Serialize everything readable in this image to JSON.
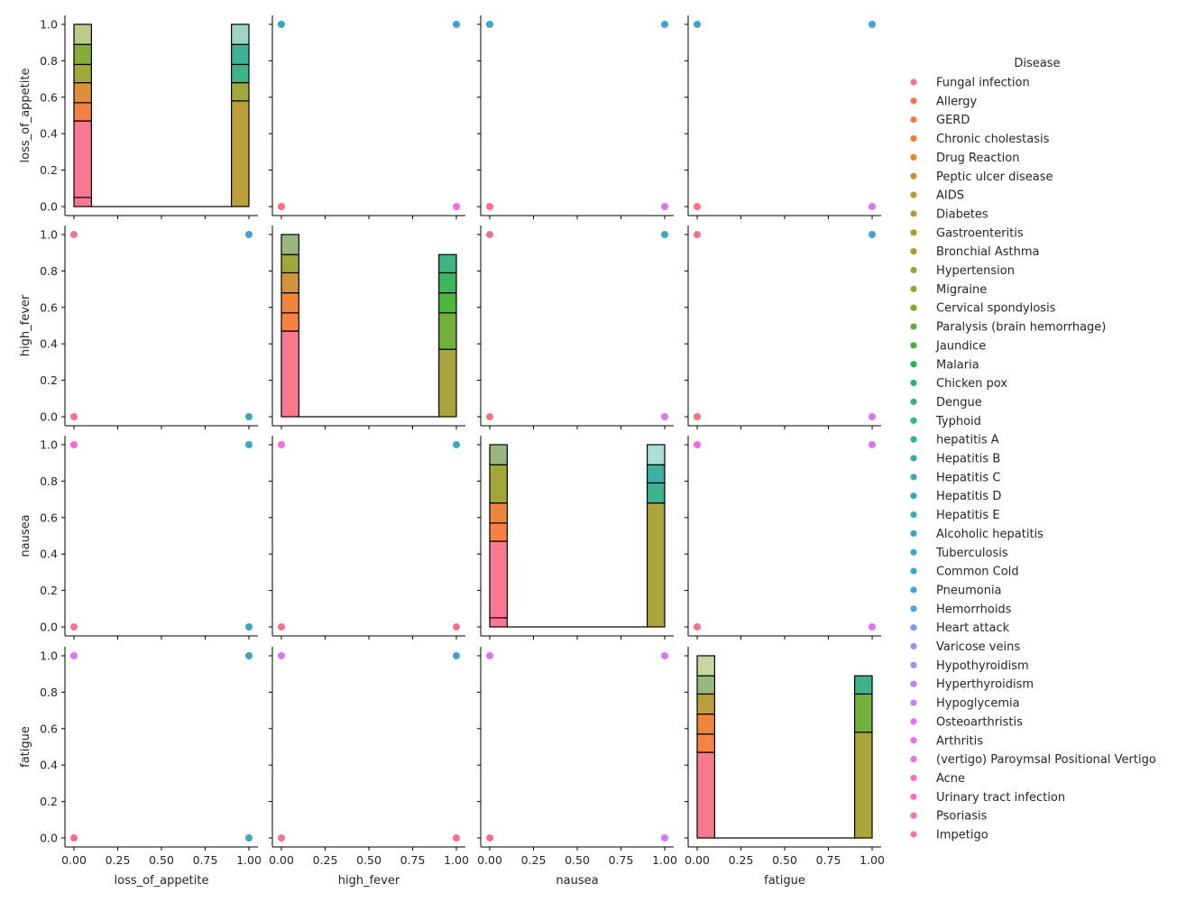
{
  "chart_data": {
    "type": "pairplot",
    "variables": [
      "loss_of_appetite",
      "high_fever",
      "nausea",
      "fatigue"
    ],
    "axis_range": [
      0,
      1
    ],
    "ticks": [
      {
        "value": 0,
        "label": "0.00",
        "ylabel": "0.0"
      },
      {
        "value": 0.2,
        "label": "",
        "ylabel": "0.2"
      },
      {
        "value": 0.25,
        "label": "0.25",
        "ylabel": ""
      },
      {
        "value": 0.4,
        "label": "",
        "ylabel": "0.4"
      },
      {
        "value": 0.5,
        "label": "0.50",
        "ylabel": ""
      },
      {
        "value": 0.6,
        "label": "",
        "ylabel": "0.6"
      },
      {
        "value": 0.75,
        "label": "0.75",
        "ylabel": ""
      },
      {
        "value": 0.8,
        "label": "",
        "ylabel": "0.8"
      },
      {
        "value": 1.0,
        "label": "1.00",
        "ylabel": "1.0"
      }
    ],
    "legend": {
      "title": "Disease",
      "placement": "right",
      "entries": [
        {
          "name": "Fungal infection",
          "color": "#f77189"
        },
        {
          "name": "Allergy",
          "color": "#f7754f"
        },
        {
          "name": "GERD",
          "color": "#f67a3a"
        },
        {
          "name": "Chronic cholestasis",
          "color": "#ec7f31"
        },
        {
          "name": "Drug Reaction",
          "color": "#dc8932"
        },
        {
          "name": "Peptic ulcer disease",
          "color": "#ce8f31"
        },
        {
          "name": "AIDS",
          "color": "#c39532"
        },
        {
          "name": "Diabetes",
          "color": "#b89a31"
        },
        {
          "name": "Gastroenteritis",
          "color": "#ae9d31"
        },
        {
          "name": "Bronchial Asthma",
          "color": "#a5a031"
        },
        {
          "name": "Hypertension",
          "color": "#9ba331"
        },
        {
          "name": "Migraine",
          "color": "#8fa631"
        },
        {
          "name": "Cervical spondylosis",
          "color": "#80a931"
        },
        {
          "name": "Paralysis (brain hemorrhage)",
          "color": "#6aad32"
        },
        {
          "name": "Jaundice",
          "color": "#43b332"
        },
        {
          "name": "Malaria",
          "color": "#33b255"
        },
        {
          "name": "Chicken pox",
          "color": "#34b16f"
        },
        {
          "name": "Dengue",
          "color": "#35af7f"
        },
        {
          "name": "Typhoid",
          "color": "#35ae8a"
        },
        {
          "name": "hepatitis A",
          "color": "#36ad94"
        },
        {
          "name": "Hepatitis B",
          "color": "#36ac9d"
        },
        {
          "name": "Hepatitis C",
          "color": "#37aba5"
        },
        {
          "name": "Hepatitis D",
          "color": "#38aaad"
        },
        {
          "name": "Hepatitis E",
          "color": "#38a9b5"
        },
        {
          "name": "Alcoholic hepatitis",
          "color": "#39a8bd"
        },
        {
          "name": "Tuberculosis",
          "color": "#3aa7c6"
        },
        {
          "name": "Common Cold",
          "color": "#3ba5d1"
        },
        {
          "name": "Pneumonia",
          "color": "#3ca3df"
        },
        {
          "name": "Hemorrhoids",
          "color": "#4e9ff4"
        },
        {
          "name": "Heart attack",
          "color": "#7a98f6"
        },
        {
          "name": "Varicose veins",
          "color": "#9491f6"
        },
        {
          "name": "Hypothyroidism",
          "color": "#a78bf6"
        },
        {
          "name": "Hyperthyroidism",
          "color": "#b884f6"
        },
        {
          "name": "Hypoglycemia",
          "color": "#c97df6"
        },
        {
          "name": "Osteoarthristis",
          "color": "#da76f5"
        },
        {
          "name": "Arthritis",
          "color": "#ec6af2"
        },
        {
          "name": "(vertigo) Paroymsal  Positional Vertigo",
          "color": "#f46ce3"
        },
        {
          "name": "Acne",
          "color": "#f56ed2"
        },
        {
          "name": "Urinary tract infection",
          "color": "#f56fc3"
        },
        {
          "name": "Psoriasis",
          "color": "#f670b4"
        },
        {
          "name": "Impetigo",
          "color": "#f672a3"
        }
      ]
    },
    "histogram_bins": [
      [
        0,
        0.1
      ],
      [
        0.1,
        0.9
      ],
      [
        0.9,
        1.0
      ]
    ],
    "diagonal_histograms": [
      {
        "variable": "loss_of_appetite",
        "stacks": [
          {
            "bin": 0,
            "layers": [
              {
                "top": 0.05,
                "color": "#f77189"
              },
              {
                "top": 0.47,
                "color": "#f77189"
              },
              {
                "top": 0.57,
                "color": "#f67a3a"
              },
              {
                "top": 0.68,
                "color": "#dc8932"
              },
              {
                "top": 0.78,
                "color": "#9ba331"
              },
              {
                "top": 0.89,
                "color": "#80a931"
              },
              {
                "top": 1.0,
                "color": "#b9c687"
              }
            ]
          },
          {
            "bin": 1,
            "layers": [
              {
                "top": 0.0,
                "color": "#f77189"
              }
            ]
          },
          {
            "bin": 2,
            "layers": [
              {
                "top": 0.58,
                "color": "#b89a31"
              },
              {
                "top": 0.68,
                "color": "#9ba331"
              },
              {
                "top": 0.78,
                "color": "#35af7f"
              },
              {
                "top": 0.89,
                "color": "#36ad94"
              },
              {
                "top": 1.0,
                "color": "#95d4c3"
              }
            ]
          }
        ]
      },
      {
        "variable": "high_fever",
        "stacks": [
          {
            "bin": 0,
            "layers": [
              {
                "top": 0.47,
                "color": "#f77189"
              },
              {
                "top": 0.57,
                "color": "#f67a3a"
              },
              {
                "top": 0.68,
                "color": "#ec7f31"
              },
              {
                "top": 0.79,
                "color": "#ce8f31"
              },
              {
                "top": 0.89,
                "color": "#9ba331"
              },
              {
                "top": 1.0,
                "color": "#96b37a"
              }
            ]
          },
          {
            "bin": 1,
            "layers": [
              {
                "top": 0.0,
                "color": "#f77189"
              }
            ]
          },
          {
            "bin": 2,
            "layers": [
              {
                "top": 0.37,
                "color": "#a5a031"
              },
              {
                "top": 0.57,
                "color": "#6aad32"
              },
              {
                "top": 0.68,
                "color": "#43b332"
              },
              {
                "top": 0.79,
                "color": "#33b255"
              },
              {
                "top": 0.89,
                "color": "#35af7f"
              }
            ]
          }
        ]
      },
      {
        "variable": "nausea",
        "stacks": [
          {
            "bin": 0,
            "layers": [
              {
                "top": 0.05,
                "color": "#f77189"
              },
              {
                "top": 0.47,
                "color": "#f77189"
              },
              {
                "top": 0.57,
                "color": "#f67a3a"
              },
              {
                "top": 0.68,
                "color": "#ec7f31"
              },
              {
                "top": 0.89,
                "color": "#9ba331"
              },
              {
                "top": 1.0,
                "color": "#96b37a"
              }
            ]
          },
          {
            "bin": 1,
            "layers": [
              {
                "top": 0.0,
                "color": "#f77189"
              }
            ]
          },
          {
            "bin": 2,
            "layers": [
              {
                "top": 0.68,
                "color": "#a5a031"
              },
              {
                "top": 0.79,
                "color": "#35ae8a"
              },
              {
                "top": 0.89,
                "color": "#36ac9d"
              },
              {
                "top": 1.0,
                "color": "#a8dbd4"
              }
            ]
          }
        ]
      },
      {
        "variable": "fatigue",
        "stacks": [
          {
            "bin": 0,
            "layers": [
              {
                "top": 0.47,
                "color": "#f77189"
              },
              {
                "top": 0.57,
                "color": "#f67a3a"
              },
              {
                "top": 0.68,
                "color": "#ec7f31"
              },
              {
                "top": 0.79,
                "color": "#b89a31"
              },
              {
                "top": 0.89,
                "color": "#96b37a"
              },
              {
                "top": 1.0,
                "color": "#c2d59d"
              }
            ]
          },
          {
            "bin": 1,
            "layers": [
              {
                "top": 0.0,
                "color": "#f77189"
              }
            ]
          },
          {
            "bin": 2,
            "layers": [
              {
                "top": 0.58,
                "color": "#a5a031"
              },
              {
                "top": 0.79,
                "color": "#6aad32"
              },
              {
                "top": 0.89,
                "color": "#35af7f"
              }
            ]
          }
        ]
      }
    ],
    "scatter_points": {
      "0,1": [
        {
          "x": 0,
          "y": 0,
          "color": "#f77189"
        },
        {
          "x": 1,
          "y": 0,
          "color": "#f46ce3"
        },
        {
          "x": 0,
          "y": 1,
          "color": "#39a8bd"
        },
        {
          "x": 1,
          "y": 1,
          "color": "#3ca3df"
        }
      ],
      "0,2": [
        {
          "x": 0,
          "y": 0,
          "color": "#f77189"
        },
        {
          "x": 1,
          "y": 0,
          "color": "#da76f5"
        },
        {
          "x": 0,
          "y": 1,
          "color": "#3aa7c6"
        },
        {
          "x": 1,
          "y": 1,
          "color": "#3ba5d1"
        }
      ],
      "0,3": [
        {
          "x": 0,
          "y": 0,
          "color": "#f77189"
        },
        {
          "x": 1,
          "y": 0,
          "color": "#da76f5"
        },
        {
          "x": 0,
          "y": 1,
          "color": "#3ba5d1"
        },
        {
          "x": 1,
          "y": 1,
          "color": "#3ca3df"
        }
      ],
      "1,0": [
        {
          "x": 0,
          "y": 0,
          "color": "#f77189"
        },
        {
          "x": 1,
          "y": 0,
          "color": "#39a8bd"
        },
        {
          "x": 0,
          "y": 1,
          "color": "#f77189"
        },
        {
          "x": 1,
          "y": 1,
          "color": "#3ca3df"
        }
      ],
      "1,2": [
        {
          "x": 0,
          "y": 0,
          "color": "#f77189"
        },
        {
          "x": 1,
          "y": 0,
          "color": "#da76f5"
        },
        {
          "x": 0,
          "y": 1,
          "color": "#f77189"
        },
        {
          "x": 1,
          "y": 1,
          "color": "#3aa7c6"
        }
      ],
      "1,3": [
        {
          "x": 0,
          "y": 0,
          "color": "#f77189"
        },
        {
          "x": 1,
          "y": 0,
          "color": "#da76f5"
        },
        {
          "x": 0,
          "y": 1,
          "color": "#f77189"
        },
        {
          "x": 1,
          "y": 1,
          "color": "#3ca3df"
        }
      ],
      "2,0": [
        {
          "x": 0,
          "y": 0,
          "color": "#f77189"
        },
        {
          "x": 1,
          "y": 0,
          "color": "#39a8bd"
        },
        {
          "x": 0,
          "y": 1,
          "color": "#f46ce3"
        },
        {
          "x": 1,
          "y": 1,
          "color": "#3aa7c6"
        }
      ],
      "2,1": [
        {
          "x": 0,
          "y": 0,
          "color": "#f77189"
        },
        {
          "x": 1,
          "y": 0,
          "color": "#f77189"
        },
        {
          "x": 0,
          "y": 1,
          "color": "#f46ce3"
        },
        {
          "x": 1,
          "y": 1,
          "color": "#38a9b5"
        }
      ],
      "2,3": [
        {
          "x": 0,
          "y": 0,
          "color": "#f77189"
        },
        {
          "x": 1,
          "y": 0,
          "color": "#da76f5"
        },
        {
          "x": 0,
          "y": 1,
          "color": "#f46ce3"
        },
        {
          "x": 1,
          "y": 1,
          "color": "#da76f5"
        }
      ],
      "3,0": [
        {
          "x": 0,
          "y": 0,
          "color": "#f77189"
        },
        {
          "x": 1,
          "y": 0,
          "color": "#39a8bd"
        },
        {
          "x": 0,
          "y": 1,
          "color": "#da76f5"
        },
        {
          "x": 1,
          "y": 1,
          "color": "#39a8bd"
        }
      ],
      "3,1": [
        {
          "x": 0,
          "y": 0,
          "color": "#f77189"
        },
        {
          "x": 1,
          "y": 0,
          "color": "#f77189"
        },
        {
          "x": 0,
          "y": 1,
          "color": "#da76f5"
        },
        {
          "x": 1,
          "y": 1,
          "color": "#3ba5d1"
        }
      ],
      "3,2": [
        {
          "x": 0,
          "y": 0,
          "color": "#f77189"
        },
        {
          "x": 1,
          "y": 0,
          "color": "#da76f5"
        },
        {
          "x": 0,
          "y": 1,
          "color": "#da76f5"
        },
        {
          "x": 1,
          "y": 1,
          "color": "#da76f5"
        }
      ]
    }
  }
}
